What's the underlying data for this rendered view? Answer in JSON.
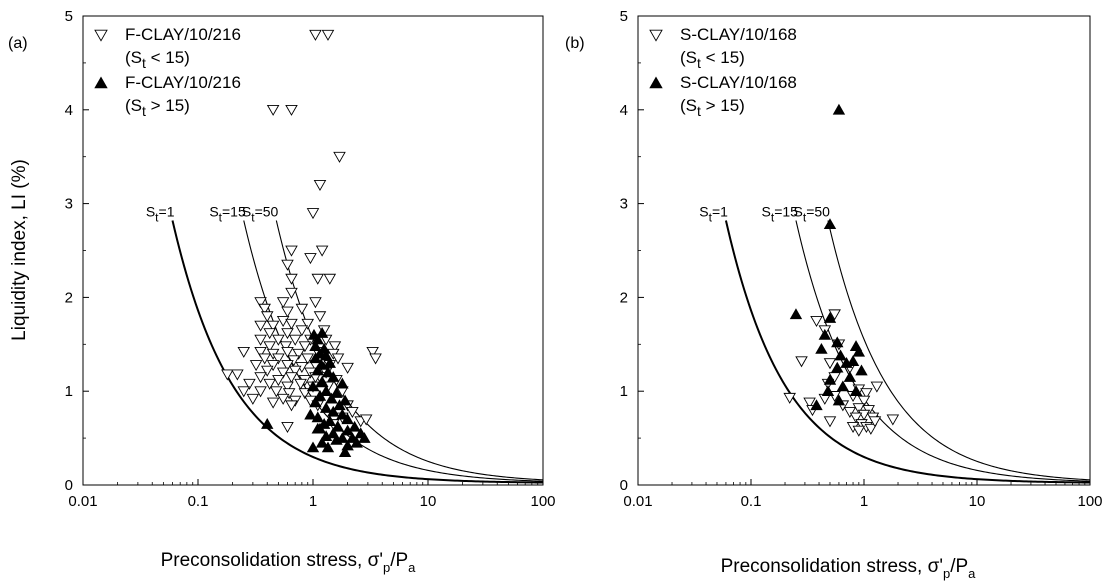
{
  "chart_data": [
    {
      "type": "scatter",
      "panel_label": "(a)",
      "xlabel": "Preconsolidation stress, σ'p/Pa",
      "ylabel": "Liquidity index, LI (%)",
      "xscale": "log",
      "xlim": [
        0.01,
        100
      ],
      "ylim": [
        0,
        5
      ],
      "xticks": [
        0.01,
        0.1,
        1,
        10,
        100
      ],
      "xtick_labels": [
        "0.01",
        "0.1",
        "1",
        "10",
        "100"
      ],
      "yticks": [
        0,
        1,
        2,
        3,
        4,
        5
      ],
      "ytick_labels": [
        "0",
        "1",
        "2",
        "3",
        "4",
        "5"
      ],
      "grid": false,
      "legend_position": "top-left",
      "legend": [
        {
          "marker": "open-down-triangle",
          "line1": "F-CLAY/10/216",
          "sub_prefix": "(S",
          "sub": "t",
          "sub_suffix": " < 15)"
        },
        {
          "marker": "filled-up-triangle",
          "line1": "F-CLAY/10/216",
          "sub_prefix": "(S",
          "sub": "t",
          "sub_suffix": " > 15)"
        }
      ],
      "curves": [
        {
          "label_main": "S",
          "label_sub": "t",
          "label_suffix": "=1",
          "x_start": 0.06,
          "width": "heavy"
        },
        {
          "label_main": "S",
          "label_sub": "t",
          "label_suffix": "=15",
          "x_start": 0.25,
          "width": "thin"
        },
        {
          "label_main": "S",
          "label_sub": "t",
          "label_suffix": "=50",
          "x_start": 0.48,
          "width": "thin"
        }
      ],
      "series": [
        {
          "name": "F-CLAY/10/216 (St < 15)",
          "marker": "open-down-triangle",
          "points": [
            [
              1.05,
              4.8
            ],
            [
              1.35,
              4.8
            ],
            [
              0.45,
              4.0
            ],
            [
              0.65,
              4.0
            ],
            [
              1.7,
              3.5
            ],
            [
              1.15,
              3.2
            ],
            [
              1.0,
              2.9
            ],
            [
              0.65,
              2.5
            ],
            [
              1.2,
              2.5
            ],
            [
              0.95,
              2.42
            ],
            [
              0.6,
              2.35
            ],
            [
              0.65,
              2.2
            ],
            [
              1.1,
              2.2
            ],
            [
              1.4,
              2.2
            ],
            [
              0.65,
              2.05
            ],
            [
              0.35,
              1.95
            ],
            [
              0.55,
              1.95
            ],
            [
              1.05,
              1.95
            ],
            [
              0.38,
              1.88
            ],
            [
              0.6,
              1.85
            ],
            [
              0.8,
              1.88
            ],
            [
              0.4,
              1.8
            ],
            [
              0.55,
              1.75
            ],
            [
              1.15,
              1.8
            ],
            [
              0.35,
              1.7
            ],
            [
              0.45,
              1.7
            ],
            [
              0.65,
              1.72
            ],
            [
              0.9,
              1.72
            ],
            [
              0.42,
              1.62
            ],
            [
              0.6,
              1.62
            ],
            [
              0.8,
              1.65
            ],
            [
              1.25,
              1.65
            ],
            [
              0.35,
              1.55
            ],
            [
              0.5,
              1.55
            ],
            [
              0.7,
              1.55
            ],
            [
              0.95,
              1.55
            ],
            [
              1.3,
              1.55
            ],
            [
              0.42,
              1.48
            ],
            [
              0.58,
              1.48
            ],
            [
              0.85,
              1.48
            ],
            [
              1.55,
              1.48
            ],
            [
              0.25,
              1.42
            ],
            [
              0.35,
              1.42
            ],
            [
              0.45,
              1.4
            ],
            [
              0.6,
              1.42
            ],
            [
              0.75,
              1.4
            ],
            [
              1.1,
              1.42
            ],
            [
              1.5,
              1.4
            ],
            [
              0.38,
              1.35
            ],
            [
              0.5,
              1.35
            ],
            [
              0.68,
              1.33
            ],
            [
              0.9,
              1.35
            ],
            [
              1.2,
              1.33
            ],
            [
              1.65,
              1.35
            ],
            [
              0.32,
              1.28
            ],
            [
              0.45,
              1.28
            ],
            [
              0.6,
              1.28
            ],
            [
              0.8,
              1.26
            ],
            [
              1.05,
              1.28
            ],
            [
              1.4,
              1.28
            ],
            [
              0.4,
              1.22
            ],
            [
              0.55,
              1.2
            ],
            [
              0.7,
              1.22
            ],
            [
              0.95,
              1.2
            ],
            [
              1.3,
              1.2
            ],
            [
              0.18,
              1.18
            ],
            [
              0.22,
              1.18
            ],
            [
              0.35,
              1.15
            ],
            [
              0.5,
              1.12
            ],
            [
              0.65,
              1.15
            ],
            [
              0.85,
              1.12
            ],
            [
              1.15,
              1.15
            ],
            [
              1.6,
              1.12
            ],
            [
              0.28,
              1.08
            ],
            [
              0.42,
              1.08
            ],
            [
              0.6,
              1.05
            ],
            [
              0.78,
              1.08
            ],
            [
              1.0,
              1.05
            ],
            [
              1.35,
              1.05
            ],
            [
              0.25,
              1.0
            ],
            [
              0.35,
              1.0
            ],
            [
              0.48,
              1.0
            ],
            [
              0.62,
              0.98
            ],
            [
              0.85,
              0.98
            ],
            [
              1.2,
              1.0
            ],
            [
              1.8,
              1.0
            ],
            [
              0.3,
              0.92
            ],
            [
              0.55,
              0.92
            ],
            [
              0.7,
              0.9
            ],
            [
              0.95,
              0.9
            ],
            [
              0.45,
              0.88
            ],
            [
              0.65,
              0.85
            ],
            [
              1.1,
              0.85
            ],
            [
              2.0,
              0.85
            ],
            [
              2.2,
              0.78
            ],
            [
              1.8,
              0.72
            ],
            [
              2.6,
              0.68
            ],
            [
              1.5,
              0.65
            ],
            [
              2.9,
              0.7
            ],
            [
              0.6,
              0.62
            ],
            [
              3.3,
              1.42
            ],
            [
              3.5,
              1.35
            ],
            [
              2.0,
              1.25
            ],
            [
              1.05,
              1.15
            ]
          ]
        },
        {
          "name": "F-CLAY/10/216 (St > 15)",
          "marker": "filled-up-triangle",
          "points": [
            [
              0.4,
              0.65
            ],
            [
              1.0,
              0.4
            ],
            [
              1.2,
              1.62
            ],
            [
              1.02,
              1.6
            ],
            [
              1.1,
              1.55
            ],
            [
              1.05,
              1.48
            ],
            [
              1.25,
              1.45
            ],
            [
              1.15,
              1.4
            ],
            [
              1.3,
              1.38
            ],
            [
              1.05,
              1.35
            ],
            [
              1.4,
              1.3
            ],
            [
              1.18,
              1.28
            ],
            [
              1.1,
              1.22
            ],
            [
              1.35,
              1.2
            ],
            [
              1.5,
              1.15
            ],
            [
              1.2,
              1.1
            ],
            [
              1.8,
              1.08
            ],
            [
              1.0,
              1.05
            ],
            [
              1.3,
              1.0
            ],
            [
              1.6,
              0.98
            ],
            [
              1.45,
              0.92
            ],
            [
              1.15,
              0.95
            ],
            [
              1.9,
              0.9
            ],
            [
              1.05,
              0.88
            ],
            [
              1.7,
              0.85
            ],
            [
              1.3,
              0.82
            ],
            [
              1.5,
              0.78
            ],
            [
              1.8,
              0.75
            ],
            [
              1.1,
              0.72
            ],
            [
              2.0,
              0.7
            ],
            [
              1.4,
              0.68
            ],
            [
              1.25,
              0.65
            ],
            [
              1.65,
              0.62
            ],
            [
              2.3,
              0.62
            ],
            [
              1.15,
              0.6
            ],
            [
              2.0,
              0.58
            ],
            [
              1.5,
              0.55
            ],
            [
              2.6,
              0.55
            ],
            [
              1.3,
              0.52
            ],
            [
              1.8,
              0.5
            ],
            [
              2.2,
              0.5
            ],
            [
              2.8,
              0.5
            ],
            [
              1.6,
              0.48
            ],
            [
              2.4,
              0.45
            ],
            [
              1.2,
              0.45
            ],
            [
              2.0,
              0.42
            ],
            [
              1.9,
              0.35
            ],
            [
              1.35,
              0.4
            ],
            [
              1.1,
              0.6
            ],
            [
              0.95,
              0.75
            ]
          ]
        }
      ]
    },
    {
      "type": "scatter",
      "panel_label": "(b)",
      "xlabel": "Preconsolidation stress, σ'p/Pa",
      "ylabel": "",
      "xscale": "log",
      "xlim": [
        0.01,
        100
      ],
      "ylim": [
        0,
        5
      ],
      "xticks": [
        0.01,
        0.1,
        1,
        10,
        100
      ],
      "xtick_labels": [
        "0.01",
        "0.1",
        "1",
        "10",
        "100"
      ],
      "yticks": [
        0,
        1,
        2,
        3,
        4,
        5
      ],
      "ytick_labels": [
        "0",
        "1",
        "2",
        "3",
        "4",
        "5"
      ],
      "grid": false,
      "legend_position": "top-left",
      "legend": [
        {
          "marker": "open-down-triangle",
          "line1": "S-CLAY/10/168",
          "sub_prefix": "(S",
          "sub": "t",
          "sub_suffix": " < 15)"
        },
        {
          "marker": "filled-up-triangle",
          "line1": "S-CLAY/10/168",
          "sub_prefix": "(S",
          "sub": "t",
          "sub_suffix": " > 15)"
        }
      ],
      "curves": [
        {
          "label_main": "S",
          "label_sub": "t",
          "label_suffix": "=1",
          "x_start": 0.06,
          "width": "heavy"
        },
        {
          "label_main": "S",
          "label_sub": "t",
          "label_suffix": "=15",
          "x_start": 0.25,
          "width": "thin"
        },
        {
          "label_main": "S",
          "label_sub": "t",
          "label_suffix": "=50",
          "x_start": 0.48,
          "width": "thin"
        }
      ],
      "series": [
        {
          "name": "S-CLAY/10/168 (St < 15)",
          "marker": "open-down-triangle",
          "points": [
            [
              0.55,
              1.82
            ],
            [
              0.38,
              1.75
            ],
            [
              0.45,
              1.65
            ],
            [
              0.6,
              1.5
            ],
            [
              0.28,
              1.32
            ],
            [
              0.5,
              1.3
            ],
            [
              0.75,
              1.25
            ],
            [
              0.55,
              1.15
            ],
            [
              0.48,
              1.08
            ],
            [
              1.3,
              1.05
            ],
            [
              0.9,
              1.02
            ],
            [
              1.05,
              0.98
            ],
            [
              0.55,
              0.95
            ],
            [
              0.8,
              0.95
            ],
            [
              0.22,
              0.93
            ],
            [
              0.45,
              0.92
            ],
            [
              1.0,
              0.9
            ],
            [
              0.33,
              0.88
            ],
            [
              0.65,
              0.85
            ],
            [
              0.9,
              0.82
            ],
            [
              0.35,
              0.8
            ],
            [
              1.1,
              0.8
            ],
            [
              0.75,
              0.78
            ],
            [
              1.0,
              0.75
            ],
            [
              0.85,
              0.72
            ],
            [
              1.2,
              0.72
            ],
            [
              1.8,
              0.7
            ],
            [
              0.5,
              0.68
            ],
            [
              0.95,
              0.65
            ],
            [
              1.05,
              0.62
            ],
            [
              0.8,
              0.62
            ],
            [
              1.15,
              0.6
            ],
            [
              0.9,
              0.58
            ],
            [
              1.25,
              0.68
            ]
          ]
        },
        {
          "name": "S-CLAY/10/168 (St > 15)",
          "marker": "filled-up-triangle",
          "points": [
            [
              0.6,
              4.0
            ],
            [
              0.5,
              2.78
            ],
            [
              0.25,
              1.82
            ],
            [
              0.5,
              1.78
            ],
            [
              0.45,
              1.6
            ],
            [
              0.58,
              1.52
            ],
            [
              0.42,
              1.45
            ],
            [
              0.85,
              1.48
            ],
            [
              0.9,
              1.42
            ],
            [
              0.62,
              1.38
            ],
            [
              0.7,
              1.3
            ],
            [
              0.8,
              1.32
            ],
            [
              0.58,
              1.25
            ],
            [
              0.95,
              1.22
            ],
            [
              0.75,
              1.15
            ],
            [
              0.5,
              1.12
            ],
            [
              0.65,
              1.05
            ],
            [
              0.48,
              1.0
            ],
            [
              0.85,
              1.0
            ],
            [
              0.6,
              0.9
            ],
            [
              0.38,
              0.85
            ]
          ]
        }
      ]
    }
  ]
}
